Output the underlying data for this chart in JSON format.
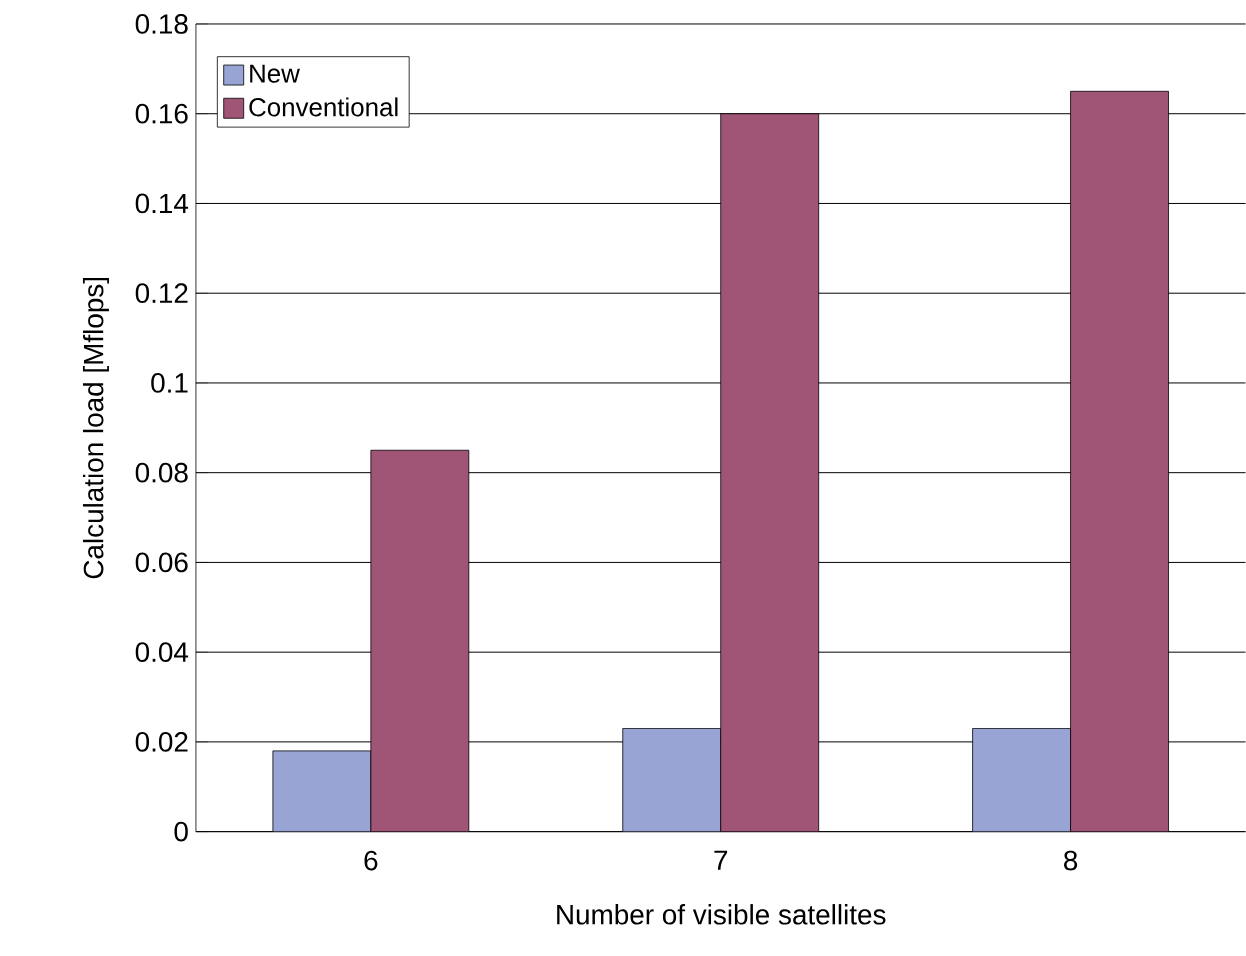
{
  "chart_data": {
    "type": "bar",
    "xlabel": "Number of visible satellites",
    "ylabel": "Calculation load [Mflops]",
    "categories": [
      "6",
      "7",
      "8"
    ],
    "series": [
      {
        "name": "New",
        "color": "#98a4d4",
        "values": [
          0.018,
          0.023,
          0.023
        ]
      },
      {
        "name": "Conventional",
        "color": "#a05476",
        "values": [
          0.085,
          0.16,
          0.165
        ]
      }
    ],
    "ylim": [
      0,
      0.18
    ],
    "yticks": [
      0,
      0.02,
      0.04,
      0.06,
      0.08,
      0.1,
      0.12,
      0.14,
      0.16,
      0.18
    ],
    "grid": "y",
    "legend": "top left"
  }
}
